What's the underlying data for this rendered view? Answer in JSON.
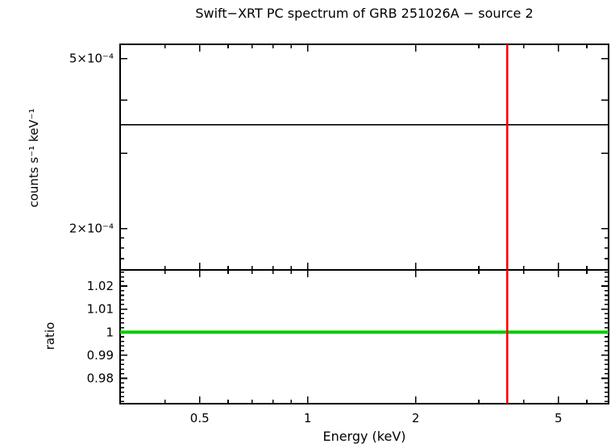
{
  "title": "Swift−XRT PC spectrum of GRB 251026A − source 2",
  "chart_data": {
    "type": "line",
    "title": "Swift−XRT PC spectrum of GRB 251026A − source 2",
    "xlabel": "Energy (keV)",
    "x_scale": "log",
    "xlim": [
      0.3,
      6.9
    ],
    "x_major_ticks": [
      {
        "v": 0.5,
        "label": "0.5"
      },
      {
        "v": 1,
        "label": "1"
      },
      {
        "v": 2,
        "label": "2"
      },
      {
        "v": 5,
        "label": "5"
      }
    ],
    "x_minor_ticks": [
      0.4,
      0.6,
      0.7,
      0.8,
      0.9,
      3,
      4,
      6
    ],
    "panels": [
      {
        "name": "spectrum",
        "ylabel": "counts s⁻¹ keV⁻¹",
        "y_scale": "log",
        "ylim": [
          0.00016,
          0.00054
        ],
        "y_major_ticks": [
          {
            "v": 0.0002,
            "label": "2×10⁻⁴"
          },
          {
            "v": 0.0003,
            "label": ""
          },
          {
            "v": 0.0004,
            "label": ""
          },
          {
            "v": 0.0005,
            "label": "5×10⁻⁴"
          }
        ],
        "y_minor_ticks": [
          0.00017,
          0.00018,
          0.00019
        ],
        "lines": [
          {
            "kind": "hline",
            "value": 0.00035,
            "color": "#000000",
            "width": 1.6,
            "name": "model-line"
          },
          {
            "kind": "vline",
            "value": 3.6,
            "color": "#ff0000",
            "width": 2.6,
            "name": "energy-marker-line"
          }
        ]
      },
      {
        "name": "ratio",
        "ylabel": "ratio",
        "y_scale": "linear",
        "ylim": [
          0.969,
          1.027
        ],
        "y_major_ticks": [
          {
            "v": 0.98,
            "label": "0.98"
          },
          {
            "v": 0.99,
            "label": "0.99"
          },
          {
            "v": 1,
            "label": "1"
          },
          {
            "v": 1.01,
            "label": "1.01"
          },
          {
            "v": 1.02,
            "label": "1.02"
          }
        ],
        "y_minor_step": 0.002,
        "lines": [
          {
            "kind": "hline",
            "value": 1,
            "color": "#00cc00",
            "width": 4,
            "name": "ratio-unity-line"
          },
          {
            "kind": "vline",
            "value": 3.6,
            "color": "#ff0000",
            "width": 2.6,
            "name": "energy-marker-line"
          }
        ]
      }
    ],
    "colors": {
      "frame": "#000000",
      "model": "#000000",
      "marker": "#ff0000",
      "unity": "#00cc00"
    }
  }
}
